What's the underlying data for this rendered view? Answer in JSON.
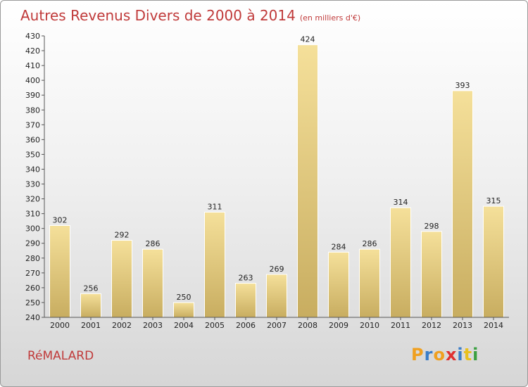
{
  "header": {
    "title": "Autres Revenus Divers de 2000 à 2014",
    "unit": "(en milliers d'€)"
  },
  "footer": {
    "commune": "RéMALARD",
    "brand_letters": [
      "P",
      "r",
      "o",
      "x",
      "i",
      "t",
      "i"
    ],
    "brand_colors": [
      "#f0a020",
      "#3a7dc8",
      "#f0a020",
      "#e03030",
      "#3a7dc8",
      "#e8c020",
      "#3aa040"
    ]
  },
  "colors": {
    "title": "#c03a3a",
    "bar_light": "#f5e09a",
    "bar_dark": "#c8ad60"
  },
  "chart_data": {
    "type": "bar",
    "categories": [
      "2000",
      "2001",
      "2002",
      "2003",
      "2004",
      "2005",
      "2006",
      "2007",
      "2008",
      "2009",
      "2010",
      "2011",
      "2012",
      "2013",
      "2014"
    ],
    "values": [
      302,
      256,
      292,
      286,
      250,
      311,
      263,
      269,
      424,
      284,
      286,
      314,
      298,
      393,
      315
    ],
    "ylim": [
      240,
      430
    ],
    "ytick_step": 10,
    "grid": false,
    "legend": "none"
  }
}
